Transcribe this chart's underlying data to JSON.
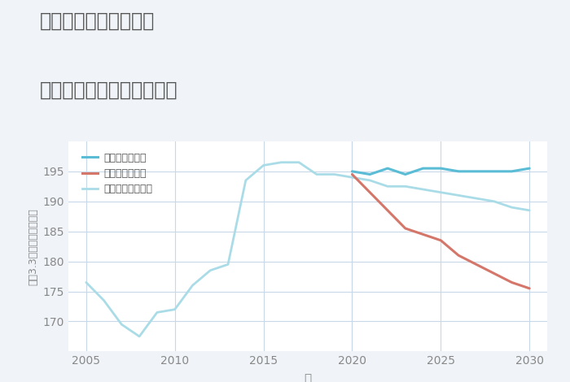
{
  "title_line1": "兵庫県西宮市荒戎町の",
  "title_line2": "中古マンションの価格推移",
  "xlabel": "年",
  "ylabel": "坪（3.3㎡）単価（万円）",
  "background_color": "#f0f4f8",
  "plot_bg_color": "#ffffff",
  "ylim": [
    165,
    200
  ],
  "yticks": [
    170,
    175,
    180,
    185,
    190,
    195
  ],
  "xlim": [
    2004,
    2031
  ],
  "xticks": [
    2005,
    2010,
    2015,
    2020,
    2025,
    2030
  ],
  "good_scenario": {
    "label": "グッドシナリオ",
    "color": "#5bbcd6",
    "linewidth": 2.2,
    "years": [
      2020,
      2021,
      2022,
      2023,
      2024,
      2025,
      2026,
      2027,
      2028,
      2029,
      2030
    ],
    "values": [
      195.0,
      194.5,
      195.5,
      194.5,
      195.5,
      195.5,
      195.0,
      195.0,
      195.0,
      195.0,
      195.5
    ]
  },
  "bad_scenario": {
    "label": "バッドシナリオ",
    "color": "#d4776a",
    "linewidth": 2.2,
    "years": [
      2020,
      2021,
      2022,
      2023,
      2024,
      2025,
      2026,
      2027,
      2028,
      2029,
      2030
    ],
    "values": [
      194.5,
      191.5,
      188.5,
      185.5,
      184.5,
      183.5,
      181.0,
      179.5,
      178.0,
      176.5,
      175.5
    ]
  },
  "normal_scenario": {
    "label": "ノーマルシナリオ",
    "color": "#aadce8",
    "linewidth": 2.0,
    "years": [
      2005,
      2006,
      2007,
      2008,
      2009,
      2010,
      2011,
      2012,
      2013,
      2014,
      2015,
      2016,
      2017,
      2018,
      2019,
      2020,
      2021,
      2022,
      2023,
      2024,
      2025,
      2026,
      2027,
      2028,
      2029,
      2030
    ],
    "values": [
      176.5,
      173.5,
      169.5,
      167.5,
      171.5,
      172.0,
      176.0,
      178.5,
      179.5,
      193.5,
      196.0,
      196.5,
      196.5,
      194.5,
      194.5,
      194.0,
      193.5,
      192.5,
      192.5,
      192.0,
      191.5,
      191.0,
      190.5,
      190.0,
      189.0,
      188.5
    ]
  },
  "grid_color": "#c8d8e8",
  "title_color": "#555555",
  "tick_color": "#888888",
  "legend_text_color": "#555555"
}
